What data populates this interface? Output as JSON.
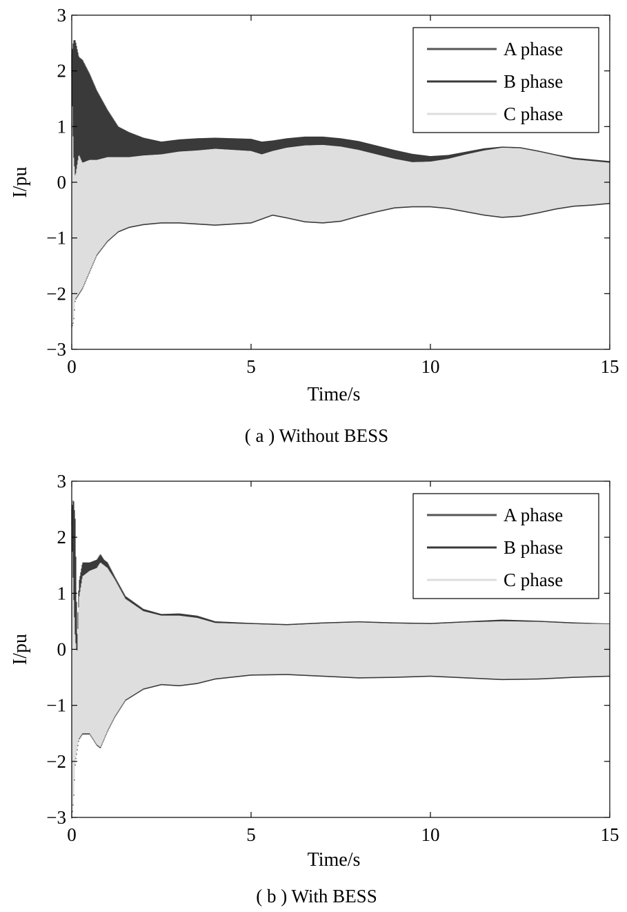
{
  "chart_data": [
    {
      "id": "a",
      "type": "line",
      "caption": "( a ) Without BESS",
      "xlabel": "Time/s",
      "ylabel": "I/pu",
      "xlim": [
        0,
        15
      ],
      "ylim": [
        -3,
        3
      ],
      "xticks": [
        0,
        5,
        10,
        15
      ],
      "yticks": [
        -3,
        -2,
        -1,
        0,
        1,
        2,
        3
      ],
      "xtick_labels": [
        "0",
        "5",
        "10",
        "15"
      ],
      "ytick_labels": [
        "−3",
        "−2",
        "−1",
        "0",
        "1",
        "2",
        "3"
      ],
      "grid": false,
      "legend_position": "top-right",
      "series": [
        {
          "name": "A phase",
          "color": "#555555"
        },
        {
          "name": "B phase",
          "color": "#3a3a3a"
        },
        {
          "name": "C phase",
          "color": "#dedede"
        }
      ],
      "envelope": {
        "t": [
          0,
          0.05,
          0.1,
          0.2,
          0.3,
          0.5,
          0.7,
          1.0,
          1.3,
          1.6,
          2.0,
          2.5,
          3.0,
          3.5,
          4.0,
          4.5,
          5.0,
          5.3,
          5.6,
          6.0,
          6.5,
          7.0,
          7.5,
          8.0,
          8.5,
          9.0,
          9.5,
          10.0,
          10.5,
          11.0,
          11.5,
          12.0,
          12.5,
          13.0,
          13.5,
          14.0,
          14.5,
          15.0
        ],
        "dark_upper": [
          2.3,
          2.55,
          2.55,
          2.25,
          2.2,
          1.95,
          1.65,
          1.3,
          1.0,
          0.9,
          0.8,
          0.73,
          0.77,
          0.79,
          0.8,
          0.79,
          0.78,
          0.73,
          0.75,
          0.79,
          0.82,
          0.82,
          0.79,
          0.74,
          0.66,
          0.58,
          0.51,
          0.47,
          0.49,
          0.55,
          0.61,
          0.64,
          0.63,
          0.57,
          0.5,
          0.44,
          0.41,
          0.38
        ],
        "light_upper": [
          1.9,
          0.5,
          0.1,
          0.5,
          0.35,
          0.4,
          0.4,
          0.45,
          0.45,
          0.45,
          0.48,
          0.5,
          0.55,
          0.57,
          0.6,
          0.58,
          0.56,
          0.5,
          0.56,
          0.62,
          0.66,
          0.67,
          0.64,
          0.58,
          0.5,
          0.42,
          0.36,
          0.37,
          0.42,
          0.5,
          0.57,
          0.62,
          0.61,
          0.55,
          0.48,
          0.41,
          0.38,
          0.35
        ],
        "light_lower": [
          -2.6,
          -2.5,
          -2.1,
          -2.0,
          -1.9,
          -1.6,
          -1.3,
          -1.05,
          -0.88,
          -0.8,
          -0.75,
          -0.72,
          -0.72,
          -0.74,
          -0.76,
          -0.74,
          -0.72,
          -0.65,
          -0.58,
          -0.63,
          -0.7,
          -0.72,
          -0.69,
          -0.6,
          -0.52,
          -0.45,
          -0.43,
          -0.43,
          -0.46,
          -0.52,
          -0.58,
          -0.62,
          -0.6,
          -0.54,
          -0.47,
          -0.42,
          -0.4,
          -0.37
        ]
      }
    },
    {
      "id": "b",
      "type": "line",
      "caption": "( b ) With BESS",
      "xlabel": "Time/s",
      "ylabel": "I/pu",
      "xlim": [
        0,
        15
      ],
      "ylim": [
        -3,
        3
      ],
      "xticks": [
        0,
        5,
        10,
        15
      ],
      "yticks": [
        -3,
        -2,
        -1,
        0,
        1,
        2,
        3
      ],
      "xtick_labels": [
        "0",
        "5",
        "10",
        "15"
      ],
      "ytick_labels": [
        "−3",
        "−2",
        "−1",
        "0",
        "1",
        "2",
        "3"
      ],
      "grid": false,
      "legend_position": "top-right",
      "series": [
        {
          "name": "A phase",
          "color": "#555555"
        },
        {
          "name": "B phase",
          "color": "#3a3a3a"
        },
        {
          "name": "C phase",
          "color": "#dedede"
        }
      ],
      "envelope": {
        "t": [
          0,
          0.05,
          0.1,
          0.15,
          0.2,
          0.3,
          0.5,
          0.7,
          0.8,
          0.9,
          1.0,
          1.2,
          1.5,
          2.0,
          2.5,
          3.0,
          3.5,
          4.0,
          5.0,
          6.0,
          7.0,
          8.0,
          9.0,
          10.0,
          11.0,
          12.0,
          13.0,
          14.0,
          15.0
        ],
        "dark_upper": [
          2.5,
          2.7,
          2.3,
          0.2,
          1.2,
          1.55,
          1.55,
          1.6,
          1.7,
          1.6,
          1.55,
          1.3,
          0.95,
          0.72,
          0.63,
          0.64,
          0.6,
          0.5,
          0.47,
          0.45,
          0.48,
          0.5,
          0.48,
          0.47,
          0.5,
          0.53,
          0.51,
          0.48,
          0.46
        ],
        "light_upper": [
          2.2,
          1.0,
          0.2,
          -0.1,
          0.9,
          1.3,
          1.4,
          1.45,
          1.55,
          1.5,
          1.45,
          1.25,
          0.9,
          0.68,
          0.6,
          0.6,
          0.56,
          0.47,
          0.45,
          0.43,
          0.46,
          0.48,
          0.46,
          0.45,
          0.48,
          0.5,
          0.49,
          0.46,
          0.45
        ],
        "light_lower": [
          -3.0,
          -2.7,
          -2.0,
          -1.8,
          -1.6,
          -1.5,
          -1.5,
          -1.7,
          -1.75,
          -1.6,
          -1.45,
          -1.2,
          -0.9,
          -0.7,
          -0.62,
          -0.64,
          -0.6,
          -0.52,
          -0.45,
          -0.44,
          -0.47,
          -0.5,
          -0.49,
          -0.47,
          -0.5,
          -0.53,
          -0.52,
          -0.49,
          -0.47
        ]
      }
    }
  ]
}
